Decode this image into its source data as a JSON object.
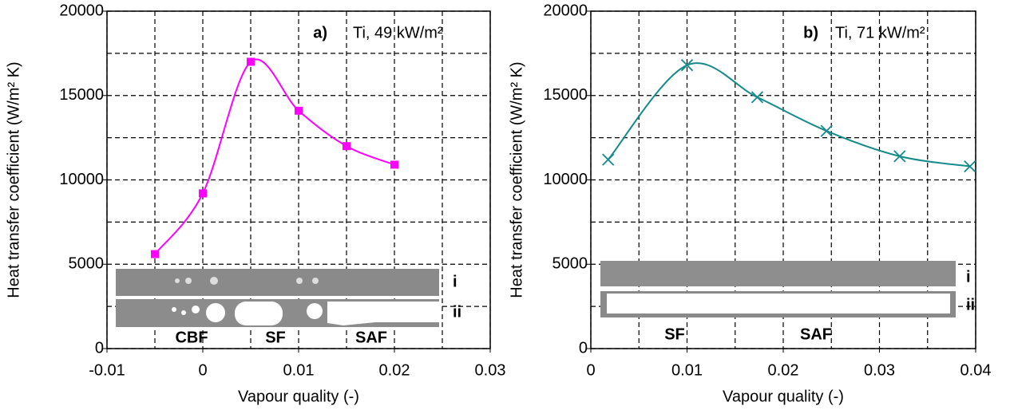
{
  "chart_data": [
    {
      "type": "line",
      "panel": "a)",
      "subtitle": "Ti, 49 kW/m²",
      "x_label": "Vapour quality (-)",
      "y_label": "Heat transfer coefficient (W/m² K)",
      "x": [
        -0.005,
        0,
        0.005,
        0.01,
        0.015,
        0.02
      ],
      "series": [
        {
          "name": "Ti, 49 kW/m²",
          "color": "#ff00ff",
          "marker": "square",
          "values": [
            5600,
            9200,
            17000,
            14100,
            12000,
            10900
          ]
        }
      ],
      "xlim": [
        -0.01,
        0.03
      ],
      "xticks": [
        -0.01,
        0,
        0.01,
        0.02,
        0.03
      ],
      "xminor": [
        -0.005,
        0.005,
        0.015,
        0.025
      ],
      "ylim": [
        0,
        20000
      ],
      "yticks": [
        0,
        5000,
        10000,
        15000,
        20000
      ],
      "yminor": [
        2500,
        7500,
        12500,
        17500
      ],
      "grid": true,
      "strip_labels": [
        "i",
        "ii"
      ],
      "regime_labels": [
        "CBF",
        "SF",
        "SAF"
      ]
    },
    {
      "type": "line",
      "panel": "b)",
      "subtitle": "Ti, 71 kW/m²",
      "x_label": "Vapour quality (-)",
      "y_label": "Heat transfer coefficient (W/m² K)",
      "x": [
        0.0018,
        0.01,
        0.0173,
        0.0245,
        0.0321,
        0.0394
      ],
      "series": [
        {
          "name": "Ti, 71 kW/m²",
          "color": "#158a8a",
          "marker": "x",
          "values": [
            11200,
            16800,
            14900,
            12900,
            11400,
            10800
          ]
        }
      ],
      "xlim": [
        0,
        0.04
      ],
      "xticks": [
        0,
        0.01,
        0.02,
        0.03,
        0.04
      ],
      "xminor": [
        0.005,
        0.015,
        0.025,
        0.035
      ],
      "ylim": [
        0,
        20000
      ],
      "yticks": [
        0,
        5000,
        10000,
        15000,
        20000
      ],
      "yminor": [
        2500,
        7500,
        12500,
        17500
      ],
      "grid": true,
      "strip_labels": [
        "i",
        "ii"
      ],
      "regime_labels": [
        "SF",
        "SAF"
      ]
    }
  ]
}
